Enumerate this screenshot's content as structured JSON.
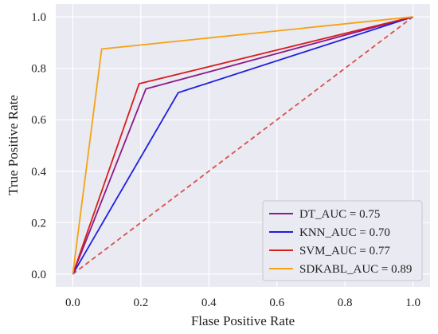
{
  "chart_data": {
    "type": "line",
    "title": "",
    "xlabel": "Flase Positive Rate",
    "ylabel": "True Positive Rate",
    "xlim": [
      -0.05,
      1.05
    ],
    "ylim": [
      -0.05,
      1.05
    ],
    "xticks": [
      "0.0",
      "0.2",
      "0.4",
      "0.6",
      "0.8",
      "1.0"
    ],
    "yticks": [
      "0.0",
      "0.2",
      "0.4",
      "0.6",
      "0.8",
      "1.0"
    ],
    "grid": true,
    "legend_position": "bottom-right",
    "series": [
      {
        "name": "DT_AUC = 0.75",
        "color": "#8b1a89",
        "x": [
          0.0,
          0.215,
          1.0
        ],
        "y": [
          0.0,
          0.72,
          1.0
        ]
      },
      {
        "name": "KNN_AUC = 0.70",
        "color": "#1f1fe0",
        "x": [
          0.0,
          0.31,
          1.0
        ],
        "y": [
          0.0,
          0.705,
          1.0
        ]
      },
      {
        "name": "SVM_AUC = 0.77",
        "color": "#d81c1c",
        "x": [
          0.0,
          0.195,
          1.0
        ],
        "y": [
          0.0,
          0.74,
          1.0
        ]
      },
      {
        "name": "SDKABL_AUC = 0.89",
        "color": "#f5a314",
        "x": [
          0.0,
          0.085,
          1.0
        ],
        "y": [
          0.0,
          0.875,
          1.0
        ]
      }
    ],
    "reference_line": {
      "color": "#d9504a",
      "x": [
        0.0,
        1.0
      ],
      "y": [
        0.0,
        1.0
      ]
    }
  }
}
